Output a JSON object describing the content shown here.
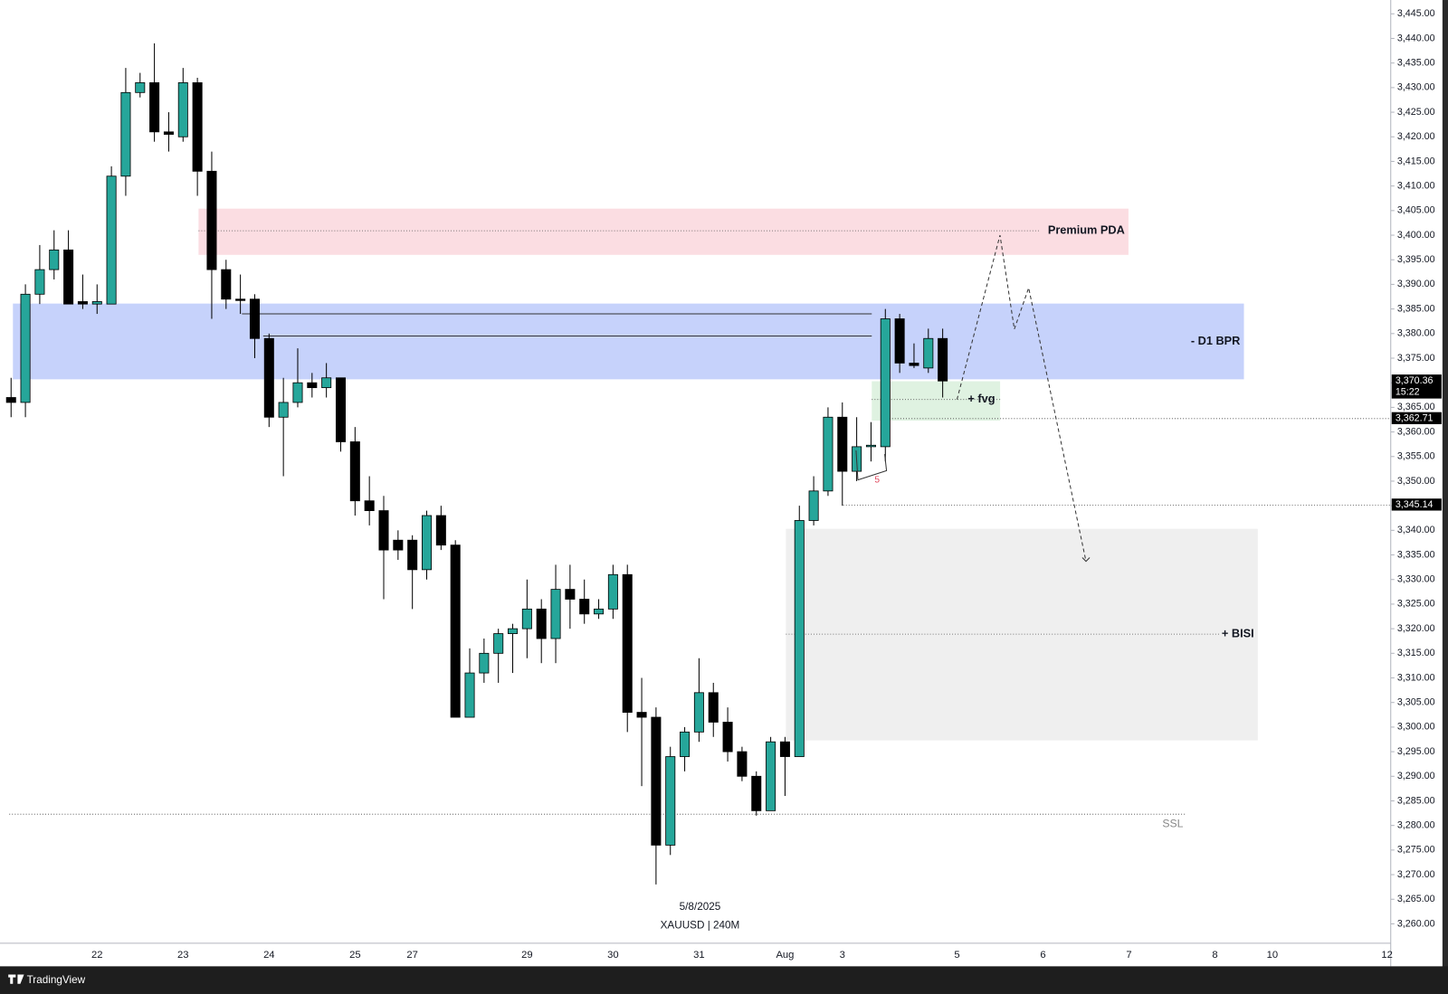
{
  "chart_data": {
    "type": "candlestick",
    "symbol": "XAUUSD | 240M",
    "date_label": "5/8/2025",
    "brand": "TradingView",
    "up_color": "#26a69a",
    "down_color": "#000000",
    "categories": [
      null,
      null,
      null,
      null,
      null,
      null,
      "22",
      null,
      null,
      null,
      null,
      null,
      "23",
      null,
      null,
      null,
      null,
      null,
      "24",
      null,
      null,
      null,
      null,
      null,
      "25",
      null,
      null,
      null,
      "27",
      null,
      null,
      null,
      null,
      null,
      null,
      null,
      "29",
      null,
      null,
      null,
      null,
      null,
      "30",
      null,
      null,
      null,
      null,
      null,
      "31",
      null,
      null,
      null,
      null,
      null,
      "Aug",
      null,
      null,
      null,
      "3",
      null,
      null,
      null,
      null,
      null,
      null,
      null,
      "5",
      null,
      null,
      null,
      null,
      null,
      "6",
      null,
      null,
      null,
      null,
      null,
      "7",
      null,
      null,
      null,
      null,
      null,
      "8",
      null,
      null,
      null,
      "10",
      null,
      null,
      null,
      null,
      null,
      null,
      null,
      "12"
    ],
    "open": [
      3367,
      3366,
      3388,
      3393,
      3397,
      3386.5,
      3386,
      3386,
      3412,
      3429,
      3431,
      3421,
      3420,
      3431,
      3413,
      3393,
      3387,
      3387,
      3379,
      3363,
      3366,
      3370,
      3369,
      3371,
      3358,
      3346,
      3344,
      3338,
      3338,
      3332,
      3343,
      3337,
      3302,
      3311,
      3315,
      3319,
      3320,
      3324,
      3318,
      3328,
      3326,
      3323,
      3324,
      3331,
      3303,
      3302,
      3276,
      3294,
      3299,
      3307,
      3301,
      3295,
      3290,
      3283,
      3297,
      3294,
      3342,
      3348,
      3363,
      3352,
      3357,
      3357,
      3383,
      3374,
      3373,
      3379,
      null,
      null,
      null,
      null,
      null,
      null,
      null,
      null,
      null,
      null,
      null,
      null,
      null,
      null,
      null,
      null,
      null,
      null,
      null,
      null,
      null,
      null,
      null,
      null,
      null,
      null,
      null,
      null,
      null,
      null,
      null
    ],
    "high": [
      3371,
      3390,
      3398,
      3401,
      3401,
      3392,
      3390,
      3414,
      3434,
      3433,
      3439,
      3425,
      3434,
      3432,
      3417,
      3395,
      3392,
      3388,
      3380,
      3371,
      3377,
      3372,
      3374,
      3371,
      3361,
      3351,
      3347,
      3340,
      3339,
      3344,
      3345,
      3338,
      3316,
      3318,
      3320,
      3321,
      3330,
      3326,
      3333,
      3333,
      3330,
      3326,
      3333,
      3333,
      3310,
      3304,
      3296,
      3300,
      3314,
      3309,
      3304,
      3296,
      3291,
      3298,
      3298,
      3345,
      3351,
      3365,
      3366,
      3363,
      3362,
      3385,
      3384,
      3378,
      3381,
      3381,
      null,
      null,
      null,
      null,
      null,
      null,
      null,
      null,
      null,
      null,
      null,
      null,
      null,
      null,
      null,
      null,
      null,
      null,
      null,
      null,
      null,
      null,
      null,
      null,
      null,
      null,
      null,
      null,
      null,
      null,
      null
    ],
    "low": [
      3363,
      3363,
      3386,
      3391,
      3386,
      3385,
      3384,
      3386,
      3408,
      3428,
      3419,
      3417,
      3419,
      3408,
      3383,
      3385,
      3384,
      3375,
      3361,
      3351,
      3365,
      3367,
      3367,
      3356,
      3343,
      3341,
      3326,
      3334,
      3324,
      3330,
      3336,
      3302,
      3302,
      3309,
      3309,
      3311,
      3314,
      3313,
      3313,
      3320,
      3321,
      3322,
      3322,
      3299,
      3288,
      3268,
      3274,
      3291,
      3297,
      3298,
      3293,
      3289,
      3282,
      3283,
      3286,
      3294,
      3341,
      3347,
      3345,
      3350,
      3354,
      3354,
      3372,
      3373,
      3372,
      3367,
      null,
      null,
      null,
      null,
      null,
      null,
      null,
      null,
      null,
      null,
      null,
      null,
      null,
      null,
      null,
      null,
      null,
      null,
      null,
      null,
      null,
      null,
      null,
      null,
      null,
      null,
      null,
      null,
      null,
      null,
      null
    ],
    "close": [
      3366,
      3388,
      3393,
      3397,
      3386,
      3386,
      3386.5,
      3412,
      3429,
      3431,
      3421,
      3420.5,
      3431,
      3413,
      3393,
      3387,
      3386.8,
      3379,
      3363,
      3366,
      3370,
      3369,
      3371,
      3358,
      3346,
      3344,
      3336,
      3336,
      3332,
      3343,
      3337,
      3302,
      3311,
      3315,
      3319,
      3320,
      3324,
      3318,
      3328,
      3326,
      3323,
      3324,
      3331,
      3303,
      3302,
      3276,
      3294,
      3299,
      3307,
      3301,
      3295,
      3290,
      3283,
      3297,
      3294,
      3342,
      3348,
      3363,
      3352,
      3357,
      3357.3,
      3383,
      3374,
      3373.5,
      3379,
      3370.36,
      null,
      null,
      null,
      null,
      null,
      null,
      null,
      null,
      null,
      null,
      null,
      null,
      null,
      null,
      null,
      null,
      null,
      null,
      null,
      null,
      null,
      null,
      null,
      null,
      null,
      null,
      null,
      null,
      null,
      null,
      null
    ],
    "ylim": [
      3256.06,
      3447.81
    ],
    "yticks": [
      {
        "value": 3260,
        "label": "3,260.00"
      },
      {
        "value": 3265,
        "label": "3,265.00"
      },
      {
        "value": 3270,
        "label": "3,270.00"
      },
      {
        "value": 3275,
        "label": "3,275.00"
      },
      {
        "value": 3280,
        "label": "3,280.00"
      },
      {
        "value": 3285,
        "label": "3,285.00"
      },
      {
        "value": 3290,
        "label": "3,290.00"
      },
      {
        "value": 3295,
        "label": "3,295.00"
      },
      {
        "value": 3300,
        "label": "3,300.00"
      },
      {
        "value": 3305,
        "label": "3,305.00"
      },
      {
        "value": 3310,
        "label": "3,310.00"
      },
      {
        "value": 3315,
        "label": "3,315.00"
      },
      {
        "value": 3320,
        "label": "3,320.00"
      },
      {
        "value": 3325,
        "label": "3,325.00"
      },
      {
        "value": 3330,
        "label": "3,330.00"
      },
      {
        "value": 3335,
        "label": "3,335.00"
      },
      {
        "value": 3340,
        "label": "3,340.00"
      },
      {
        "value": 3345,
        "label": "3,345.00"
      },
      {
        "value": 3350,
        "label": "3,350.00"
      },
      {
        "value": 3355,
        "label": "3,355.00"
      },
      {
        "value": 3360,
        "label": "3,360.00"
      },
      {
        "value": 3365,
        "label": "3,365.00"
      },
      {
        "value": 3370,
        "label": "3,370.00"
      },
      {
        "value": 3375,
        "label": "3,375.00"
      },
      {
        "value": 3380,
        "label": "3,380.00"
      },
      {
        "value": 3385,
        "label": "3,385.00"
      },
      {
        "value": 3390,
        "label": "3,390.00"
      },
      {
        "value": 3395,
        "label": "3,395.00"
      },
      {
        "value": 3400,
        "label": "3,400.00"
      },
      {
        "value": 3405,
        "label": "3,405.00"
      },
      {
        "value": 3410,
        "label": "3,410.00"
      },
      {
        "value": 3415,
        "label": "3,415.00"
      },
      {
        "value": 3420,
        "label": "3,420.00"
      },
      {
        "value": 3425,
        "label": "3,425.00"
      },
      {
        "value": 3430,
        "label": "3,430.00"
      },
      {
        "value": 3435,
        "label": "3,435.00"
      },
      {
        "value": 3440,
        "label": "3,440.00"
      },
      {
        "value": 3445,
        "label": "3,445.00"
      }
    ],
    "grid": false,
    "zones": [
      {
        "label": "Premium PDA",
        "top": 3405.4,
        "bottom": 3396,
        "mid": 3400.9,
        "color": "#fbdde2"
      },
      {
        "label": "- D1 BPR",
        "top": 3386.1,
        "bottom": 3370.7,
        "color": "#c6d2fb"
      },
      {
        "label": "+ fvg",
        "top": 3370.3,
        "bottom": 3362.3,
        "mid": 3366.6,
        "color": "#dff2e1"
      },
      {
        "label": "+ BISI",
        "top": 3340.3,
        "bottom": 3297.3,
        "mid": 3318.9,
        "color": "#efefef"
      }
    ],
    "levels": [
      3384,
      3379.5
    ],
    "ssl": {
      "label": "SSL",
      "value": 3282.3
    },
    "swing_label": "5",
    "projection": [
      3366.6,
      3400,
      3380.9,
      3389.3,
      3333.7
    ],
    "price_markers": [
      {
        "value": 3370.36,
        "label": "3,370.36",
        "sub": "15:22"
      },
      {
        "value": 3362.71,
        "label": "3,362.71"
      },
      {
        "value": 3345.14,
        "label": "3,345.14"
      }
    ]
  }
}
